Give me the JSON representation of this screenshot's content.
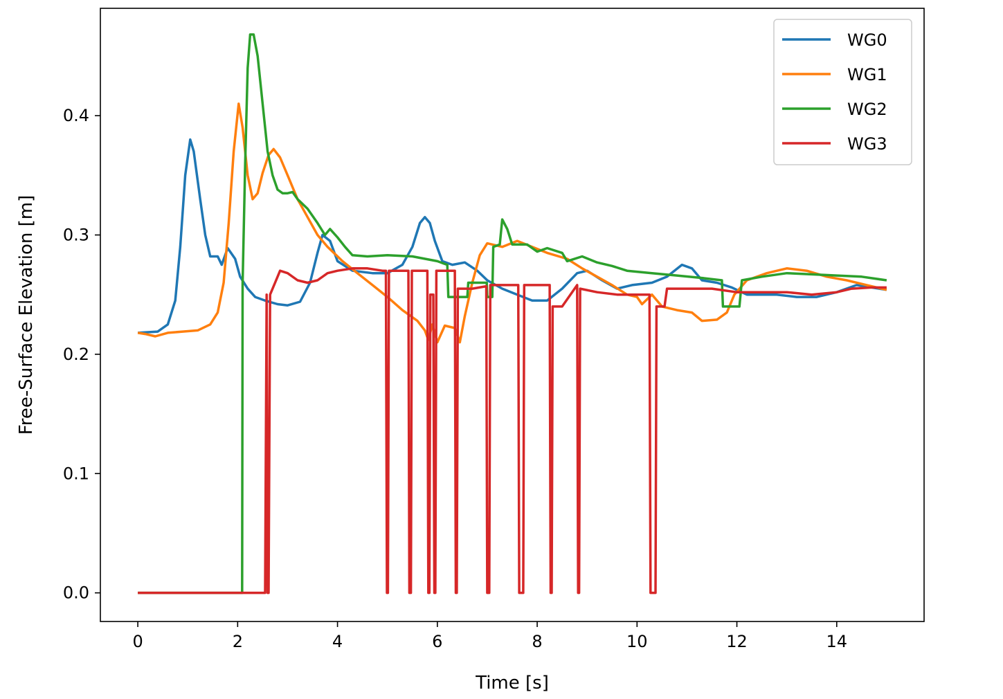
{
  "chart_data": {
    "type": "line",
    "title": "",
    "xlabel": "Time [s]",
    "ylabel": "Free-Surface Elevation [m]",
    "xlim": [
      -0.75,
      15.75
    ],
    "ylim": [
      -0.024,
      0.49
    ],
    "xticks": [
      0,
      2,
      4,
      6,
      8,
      10,
      12,
      14
    ],
    "yticks": [
      0.0,
      0.1,
      0.2,
      0.3,
      0.4
    ],
    "xtick_labels": [
      "0",
      "2",
      "4",
      "6",
      "8",
      "10",
      "12",
      "14"
    ],
    "ytick_labels": [
      "0.0",
      "0.1",
      "0.2",
      "0.3",
      "0.4"
    ],
    "grid": false,
    "legend_position": "top-right",
    "series": [
      {
        "name": "WG0",
        "color": "#1f77b4",
        "points": [
          [
            0,
            0.218
          ],
          [
            0.4,
            0.219
          ],
          [
            0.6,
            0.225
          ],
          [
            0.75,
            0.245
          ],
          [
            0.85,
            0.29
          ],
          [
            0.95,
            0.35
          ],
          [
            1.05,
            0.38
          ],
          [
            1.12,
            0.37
          ],
          [
            1.25,
            0.33
          ],
          [
            1.35,
            0.3
          ],
          [
            1.45,
            0.282
          ],
          [
            1.6,
            0.282
          ],
          [
            1.68,
            0.275
          ],
          [
            1.8,
            0.289
          ],
          [
            1.95,
            0.28
          ],
          [
            2.05,
            0.265
          ],
          [
            2.2,
            0.255
          ],
          [
            2.35,
            0.248
          ],
          [
            2.55,
            0.245
          ],
          [
            2.8,
            0.242
          ],
          [
            3.0,
            0.241
          ],
          [
            3.25,
            0.244
          ],
          [
            3.45,
            0.26
          ],
          [
            3.6,
            0.285
          ],
          [
            3.7,
            0.3
          ],
          [
            3.85,
            0.295
          ],
          [
            4.0,
            0.278
          ],
          [
            4.3,
            0.27
          ],
          [
            4.7,
            0.268
          ],
          [
            5.0,
            0.268
          ],
          [
            5.3,
            0.275
          ],
          [
            5.5,
            0.29
          ],
          [
            5.65,
            0.31
          ],
          [
            5.75,
            0.315
          ],
          [
            5.85,
            0.31
          ],
          [
            5.95,
            0.295
          ],
          [
            6.1,
            0.278
          ],
          [
            6.3,
            0.275
          ],
          [
            6.55,
            0.277
          ],
          [
            6.8,
            0.27
          ],
          [
            7.0,
            0.262
          ],
          [
            7.3,
            0.255
          ],
          [
            7.6,
            0.25
          ],
          [
            7.9,
            0.245
          ],
          [
            8.2,
            0.245
          ],
          [
            8.5,
            0.255
          ],
          [
            8.8,
            0.268
          ],
          [
            9.0,
            0.27
          ],
          [
            9.3,
            0.262
          ],
          [
            9.6,
            0.255
          ],
          [
            9.9,
            0.258
          ],
          [
            10.3,
            0.26
          ],
          [
            10.6,
            0.265
          ],
          [
            10.9,
            0.275
          ],
          [
            11.1,
            0.272
          ],
          [
            11.3,
            0.262
          ],
          [
            11.6,
            0.26
          ],
          [
            11.9,
            0.256
          ],
          [
            12.2,
            0.25
          ],
          [
            12.5,
            0.25
          ],
          [
            12.8,
            0.25
          ],
          [
            13.2,
            0.248
          ],
          [
            13.6,
            0.248
          ],
          [
            14.0,
            0.252
          ],
          [
            14.4,
            0.258
          ],
          [
            14.7,
            0.256
          ],
          [
            15.0,
            0.254
          ]
        ]
      },
      {
        "name": "WG1",
        "color": "#ff7f0e",
        "points": [
          [
            0,
            0.218
          ],
          [
            0.15,
            0.217
          ],
          [
            0.35,
            0.215
          ],
          [
            0.6,
            0.218
          ],
          [
            0.9,
            0.219
          ],
          [
            1.2,
            0.22
          ],
          [
            1.45,
            0.225
          ],
          [
            1.6,
            0.235
          ],
          [
            1.72,
            0.26
          ],
          [
            1.82,
            0.31
          ],
          [
            1.92,
            0.37
          ],
          [
            2.02,
            0.41
          ],
          [
            2.1,
            0.39
          ],
          [
            2.2,
            0.35
          ],
          [
            2.3,
            0.33
          ],
          [
            2.4,
            0.335
          ],
          [
            2.5,
            0.352
          ],
          [
            2.62,
            0.367
          ],
          [
            2.72,
            0.372
          ],
          [
            2.85,
            0.365
          ],
          [
            3.0,
            0.35
          ],
          [
            3.2,
            0.33
          ],
          [
            3.4,
            0.315
          ],
          [
            3.6,
            0.3
          ],
          [
            3.8,
            0.29
          ],
          [
            4.1,
            0.278
          ],
          [
            4.4,
            0.268
          ],
          [
            4.7,
            0.258
          ],
          [
            5.0,
            0.248
          ],
          [
            5.3,
            0.237
          ],
          [
            5.6,
            0.228
          ],
          [
            5.75,
            0.22
          ],
          [
            5.82,
            0.212
          ],
          [
            5.9,
            0.225
          ],
          [
            6.0,
            0.21
          ],
          [
            6.15,
            0.224
          ],
          [
            6.35,
            0.222
          ],
          [
            6.45,
            0.21
          ],
          [
            6.55,
            0.232
          ],
          [
            6.7,
            0.26
          ],
          [
            6.85,
            0.283
          ],
          [
            7.0,
            0.293
          ],
          [
            7.3,
            0.29
          ],
          [
            7.6,
            0.295
          ],
          [
            7.9,
            0.29
          ],
          [
            8.2,
            0.285
          ],
          [
            8.6,
            0.28
          ],
          [
            8.9,
            0.272
          ],
          [
            9.2,
            0.265
          ],
          [
            9.5,
            0.258
          ],
          [
            9.8,
            0.25
          ],
          [
            10.0,
            0.248
          ],
          [
            10.1,
            0.242
          ],
          [
            10.3,
            0.25
          ],
          [
            10.5,
            0.24
          ],
          [
            10.8,
            0.237
          ],
          [
            11.1,
            0.235
          ],
          [
            11.3,
            0.228
          ],
          [
            11.6,
            0.229
          ],
          [
            11.8,
            0.235
          ],
          [
            11.95,
            0.25
          ],
          [
            12.2,
            0.262
          ],
          [
            12.6,
            0.268
          ],
          [
            13.0,
            0.272
          ],
          [
            13.4,
            0.27
          ],
          [
            13.8,
            0.265
          ],
          [
            14.2,
            0.262
          ],
          [
            14.6,
            0.258
          ],
          [
            15.0,
            0.254
          ]
        ]
      },
      {
        "name": "WG2",
        "color": "#2ca02c",
        "points": [
          [
            0,
            0
          ],
          [
            2.09,
            0
          ],
          [
            2.1,
            0.26
          ],
          [
            2.15,
            0.36
          ],
          [
            2.2,
            0.44
          ],
          [
            2.25,
            0.468
          ],
          [
            2.32,
            0.468
          ],
          [
            2.4,
            0.45
          ],
          [
            2.5,
            0.41
          ],
          [
            2.6,
            0.37
          ],
          [
            2.7,
            0.35
          ],
          [
            2.8,
            0.338
          ],
          [
            2.9,
            0.335
          ],
          [
            3.0,
            0.335
          ],
          [
            3.1,
            0.336
          ],
          [
            3.2,
            0.33
          ],
          [
            3.4,
            0.322
          ],
          [
            3.6,
            0.31
          ],
          [
            3.75,
            0.3
          ],
          [
            3.85,
            0.305
          ],
          [
            4.0,
            0.298
          ],
          [
            4.15,
            0.29
          ],
          [
            4.3,
            0.283
          ],
          [
            4.6,
            0.282
          ],
          [
            5.0,
            0.283
          ],
          [
            5.5,
            0.282
          ],
          [
            6.0,
            0.278
          ],
          [
            6.2,
            0.275
          ],
          [
            6.22,
            0.248
          ],
          [
            6.6,
            0.248
          ],
          [
            6.62,
            0.26
          ],
          [
            6.99,
            0.26
          ],
          [
            7.0,
            0.248
          ],
          [
            7.1,
            0.248
          ],
          [
            7.12,
            0.29
          ],
          [
            7.25,
            0.292
          ],
          [
            7.3,
            0.313
          ],
          [
            7.4,
            0.305
          ],
          [
            7.5,
            0.292
          ],
          [
            7.8,
            0.292
          ],
          [
            8.0,
            0.286
          ],
          [
            8.2,
            0.289
          ],
          [
            8.5,
            0.285
          ],
          [
            8.6,
            0.278
          ],
          [
            8.9,
            0.282
          ],
          [
            9.2,
            0.277
          ],
          [
            9.5,
            0.274
          ],
          [
            9.8,
            0.27
          ],
          [
            10.3,
            0.268
          ],
          [
            10.8,
            0.266
          ],
          [
            11.3,
            0.264
          ],
          [
            11.7,
            0.262
          ],
          [
            11.72,
            0.24
          ],
          [
            12.05,
            0.24
          ],
          [
            12.1,
            0.262
          ],
          [
            12.5,
            0.265
          ],
          [
            13.0,
            0.268
          ],
          [
            13.5,
            0.267
          ],
          [
            14.0,
            0.266
          ],
          [
            14.5,
            0.265
          ],
          [
            15.0,
            0.262
          ]
        ]
      },
      {
        "name": "WG3",
        "color": "#d62728",
        "points": [
          [
            0,
            0
          ],
          [
            2.55,
            0
          ],
          [
            2.58,
            0.25
          ],
          [
            2.6,
            0
          ],
          [
            2.62,
            0
          ],
          [
            2.65,
            0.25
          ],
          [
            2.75,
            0.26
          ],
          [
            2.85,
            0.27
          ],
          [
            3.0,
            0.268
          ],
          [
            3.2,
            0.262
          ],
          [
            3.4,
            0.26
          ],
          [
            3.6,
            0.262
          ],
          [
            3.8,
            0.268
          ],
          [
            4.0,
            0.27
          ],
          [
            4.3,
            0.272
          ],
          [
            4.6,
            0.272
          ],
          [
            4.9,
            0.27
          ],
          [
            4.97,
            0.27
          ],
          [
            4.99,
            0
          ],
          [
            5.01,
            0
          ],
          [
            5.03,
            0.27
          ],
          [
            5.3,
            0.27
          ],
          [
            5.42,
            0.27
          ],
          [
            5.44,
            0
          ],
          [
            5.47,
            0
          ],
          [
            5.49,
            0.27
          ],
          [
            5.8,
            0.27
          ],
          [
            5.82,
            0
          ],
          [
            5.84,
            0
          ],
          [
            5.86,
            0.25
          ],
          [
            5.92,
            0.25
          ],
          [
            5.94,
            0
          ],
          [
            5.96,
            0
          ],
          [
            5.98,
            0.27
          ],
          [
            6.35,
            0.27
          ],
          [
            6.37,
            0
          ],
          [
            6.39,
            0
          ],
          [
            6.41,
            0.255
          ],
          [
            6.7,
            0.255
          ],
          [
            6.98,
            0.257
          ],
          [
            7.0,
            0
          ],
          [
            7.04,
            0
          ],
          [
            7.06,
            0.258
          ],
          [
            7.62,
            0.258
          ],
          [
            7.64,
            0
          ],
          [
            7.72,
            0
          ],
          [
            7.74,
            0.258
          ],
          [
            8.25,
            0.258
          ],
          [
            8.27,
            0
          ],
          [
            8.29,
            0
          ],
          [
            8.31,
            0.24
          ],
          [
            8.5,
            0.24
          ],
          [
            8.8,
            0.258
          ],
          [
            8.82,
            0
          ],
          [
            8.84,
            0
          ],
          [
            8.86,
            0.255
          ],
          [
            9.2,
            0.252
          ],
          [
            9.6,
            0.25
          ],
          [
            10.0,
            0.25
          ],
          [
            10.25,
            0.25
          ],
          [
            10.27,
            0
          ],
          [
            10.37,
            0
          ],
          [
            10.39,
            0.24
          ],
          [
            10.55,
            0.24
          ],
          [
            10.6,
            0.255
          ],
          [
            11.0,
            0.255
          ],
          [
            11.5,
            0.255
          ],
          [
            12.0,
            0.252
          ],
          [
            12.5,
            0.252
          ],
          [
            13.0,
            0.252
          ],
          [
            13.5,
            0.25
          ],
          [
            14.0,
            0.252
          ],
          [
            14.3,
            0.255
          ],
          [
            14.7,
            0.256
          ],
          [
            15.0,
            0.256
          ]
        ]
      }
    ]
  }
}
